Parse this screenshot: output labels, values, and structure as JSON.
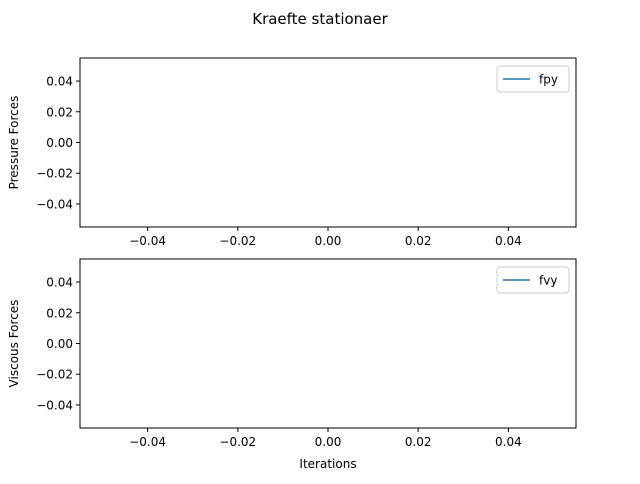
{
  "figure": {
    "title": "Kraefte stationaer"
  },
  "colors": {
    "series_line": "#1f77b4",
    "axes": "#000000",
    "legend_border": "#cccccc"
  },
  "chart_data": [
    {
      "type": "line",
      "title": "",
      "xlabel": "",
      "ylabel": "Pressure Forces",
      "xlim": [
        -0.055,
        0.055
      ],
      "ylim": [
        -0.055,
        0.055
      ],
      "x_ticks": [
        "−0.04",
        "−0.02",
        "0.00",
        "0.02",
        "0.04"
      ],
      "x_tick_values": [
        -0.04,
        -0.02,
        0.0,
        0.02,
        0.04
      ],
      "y_ticks": [
        "0.04",
        "0.02",
        "0.00",
        "−0.02",
        "−0.04"
      ],
      "y_tick_values": [
        0.04,
        0.02,
        0.0,
        -0.02,
        -0.04
      ],
      "grid": false,
      "legend": "top-right",
      "series": [
        {
          "name": "fpy",
          "x": [],
          "y": []
        }
      ]
    },
    {
      "type": "line",
      "title": "",
      "xlabel": "Iterations",
      "ylabel": "Viscous Forces",
      "xlim": [
        -0.055,
        0.055
      ],
      "ylim": [
        -0.055,
        0.055
      ],
      "x_ticks": [
        "−0.04",
        "−0.02",
        "0.00",
        "0.02",
        "0.04"
      ],
      "x_tick_values": [
        -0.04,
        -0.02,
        0.0,
        0.02,
        0.04
      ],
      "y_ticks": [
        "0.04",
        "0.02",
        "0.00",
        "−0.02",
        "−0.04"
      ],
      "y_tick_values": [
        0.04,
        0.02,
        0.0,
        -0.02,
        -0.04
      ],
      "grid": false,
      "legend": "top-right",
      "series": [
        {
          "name": "fvy",
          "x": [],
          "y": []
        }
      ]
    }
  ]
}
